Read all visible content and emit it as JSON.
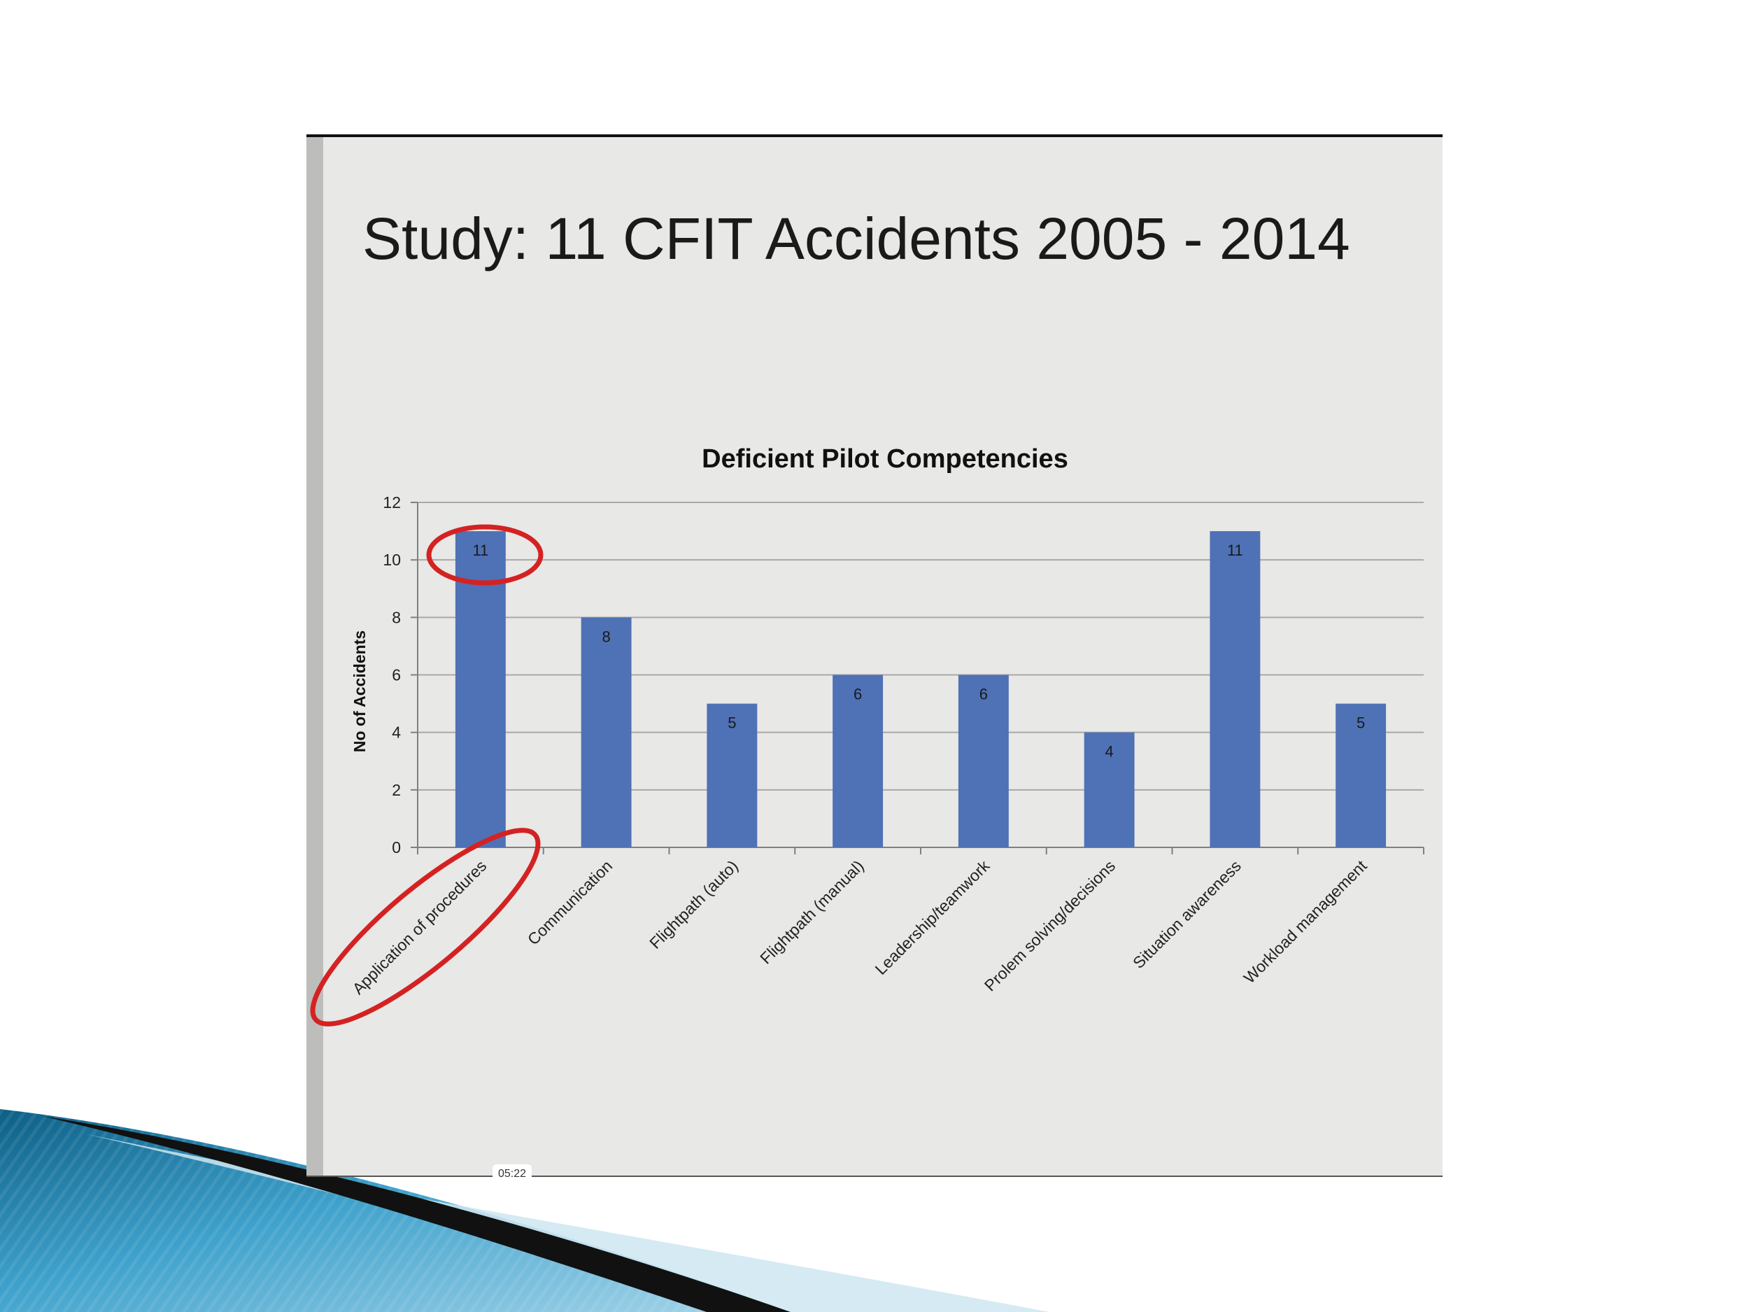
{
  "slide": {
    "title": "Study: 11 CFIT Accidents 2005 - 2014",
    "video_timestamp": "05:22"
  },
  "colors": {
    "bar": "#4f71b5",
    "panel": "#e8e8e6",
    "grid": "#a9a9a9",
    "highlight": "#d42222",
    "swoosh_dark": "#111111",
    "swoosh_blue": "#2f86b0"
  },
  "chart_data": {
    "type": "bar",
    "title": "Deficient Pilot Competencies",
    "xlabel": "",
    "ylabel": "No of Accidents",
    "ylim": [
      0,
      12
    ],
    "yticks": [
      "0",
      "2",
      "4",
      "6",
      "8",
      "10",
      "12"
    ],
    "grid": true,
    "categories": [
      "Application of procedures",
      "Communication",
      "Flightpath (auto)",
      "Flightpath (manual)",
      "Leadership/teamwork",
      "Prolem solving/decisions",
      "Situation awareness",
      "Workload management"
    ],
    "values": [
      11,
      8,
      5,
      6,
      6,
      4,
      11,
      5
    ],
    "data_labels": [
      "11",
      "8",
      "5",
      "6",
      "6",
      "4",
      "11",
      "5"
    ],
    "highlighted_category": "Application of procedures"
  }
}
